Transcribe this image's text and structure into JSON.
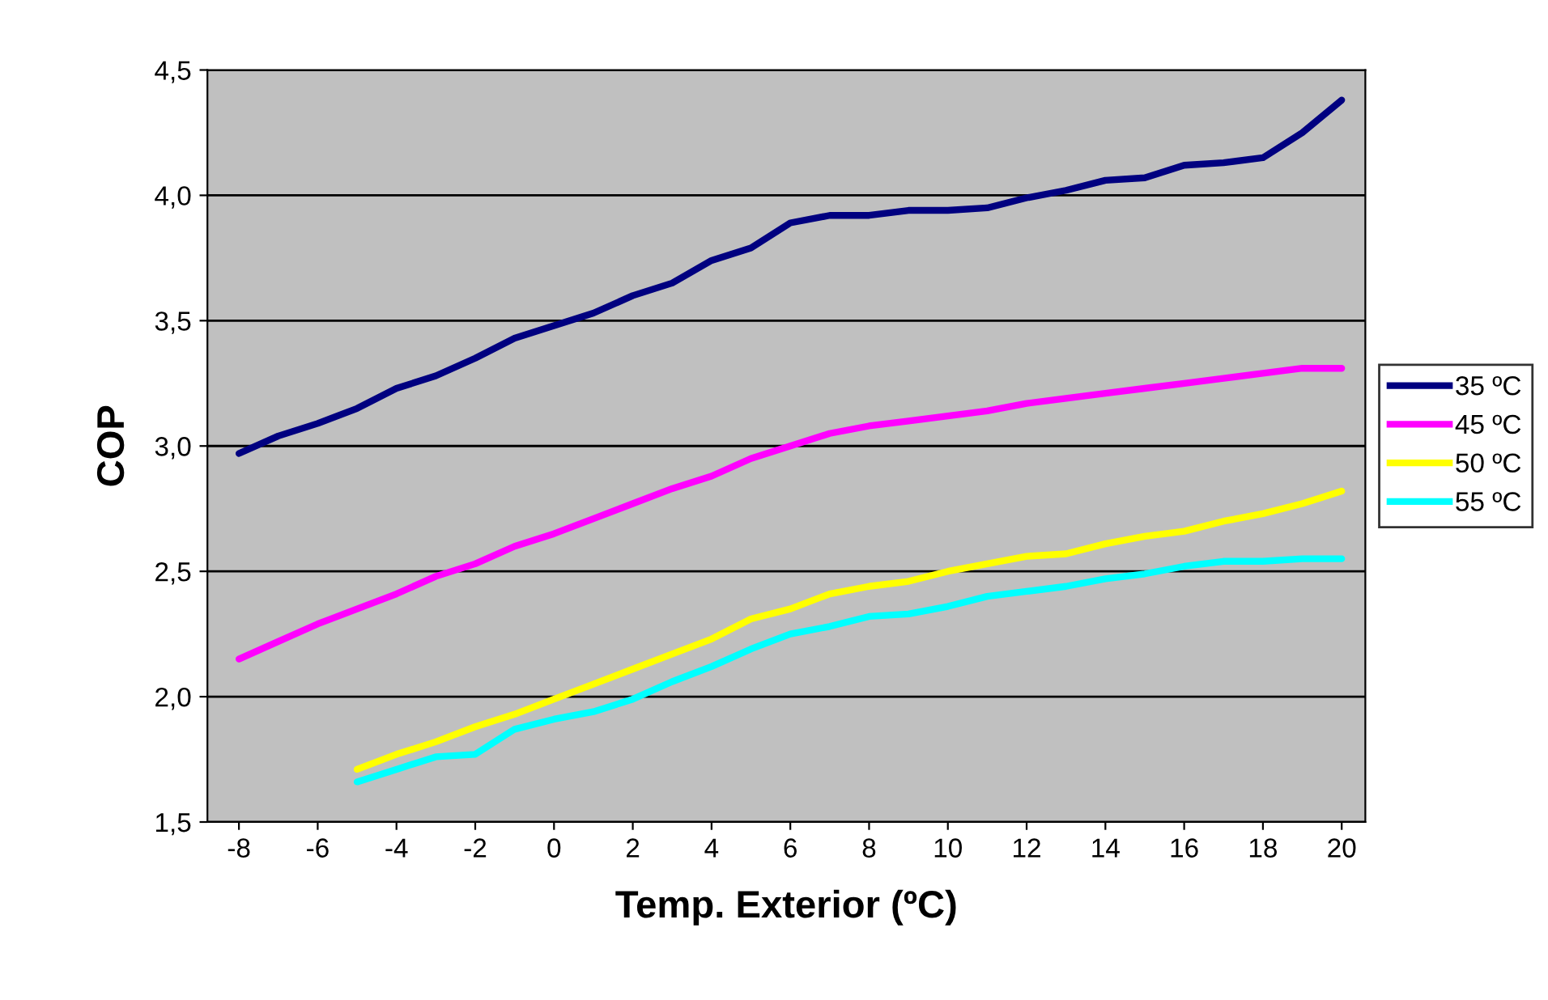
{
  "chart_data": {
    "type": "line",
    "xlabel": "Temp. Exterior (ºC)",
    "ylabel": "COP",
    "xlim": [
      -8.8,
      20.6
    ],
    "xticks": [
      -8,
      -6,
      -4,
      -2,
      0,
      2,
      4,
      6,
      8,
      10,
      12,
      14,
      16,
      18,
      20
    ],
    "ylim": [
      1.5,
      4.5
    ],
    "yticks": [
      {
        "value": 1.5,
        "label": "1,5"
      },
      {
        "value": 2.0,
        "label": "2,0"
      },
      {
        "value": 2.5,
        "label": "2,5"
      },
      {
        "value": 3.0,
        "label": "3,0"
      },
      {
        "value": 3.5,
        "label": "3,5"
      },
      {
        "value": 4.0,
        "label": "4,0"
      },
      {
        "value": 4.5,
        "label": "4,5"
      }
    ],
    "grid": "y",
    "legend": "right",
    "marker": "none",
    "line_style": "solid",
    "series": [
      {
        "name": "35 ºC",
        "color": "#000080",
        "x": [
          -8,
          -7,
          -6,
          -5,
          -4,
          -3,
          -2,
          -1,
          0,
          1,
          2,
          3,
          4,
          5,
          6,
          7,
          8,
          9,
          10,
          11,
          12,
          13,
          14,
          15,
          16,
          17,
          18,
          19,
          20
        ],
        "values": [
          2.97,
          3.04,
          3.09,
          3.15,
          3.23,
          3.28,
          3.35,
          3.43,
          3.48,
          3.53,
          3.6,
          3.65,
          3.74,
          3.79,
          3.89,
          3.92,
          3.92,
          3.94,
          3.94,
          3.95,
          3.99,
          4.02,
          4.06,
          4.07,
          4.12,
          4.13,
          4.15,
          4.25,
          4.38
        ]
      },
      {
        "name": "45 ºC",
        "color": "#ff00ff",
        "x": [
          -8,
          -7,
          -6,
          -5,
          -4,
          -3,
          -2,
          -1,
          0,
          1,
          2,
          3,
          4,
          5,
          6,
          7,
          8,
          9,
          10,
          11,
          12,
          13,
          14,
          15,
          16,
          17,
          18,
          19,
          20
        ],
        "values": [
          2.15,
          2.22,
          2.29,
          2.35,
          2.41,
          2.48,
          2.53,
          2.6,
          2.65,
          2.71,
          2.77,
          2.83,
          2.88,
          2.95,
          3.0,
          3.05,
          3.08,
          3.1,
          3.12,
          3.14,
          3.17,
          3.19,
          3.21,
          3.23,
          3.25,
          3.27,
          3.29,
          3.31,
          3.31
        ]
      },
      {
        "name": "50 ºC",
        "color": "#ffff00",
        "x": [
          -5,
          -4,
          -3,
          -2,
          -1,
          0,
          1,
          2,
          3,
          4,
          5,
          6,
          7,
          8,
          9,
          10,
          11,
          12,
          13,
          14,
          15,
          16,
          17,
          18,
          19,
          20
        ],
        "values": [
          1.71,
          1.77,
          1.82,
          1.88,
          1.93,
          1.99,
          2.05,
          2.11,
          2.17,
          2.23,
          2.31,
          2.35,
          2.41,
          2.44,
          2.46,
          2.5,
          2.53,
          2.56,
          2.57,
          2.61,
          2.64,
          2.66,
          2.7,
          2.73,
          2.77,
          2.82
        ]
      },
      {
        "name": "55 ºC",
        "color": "#00ffff",
        "x": [
          -5,
          -4,
          -3,
          -2,
          -1,
          0,
          1,
          2,
          3,
          4,
          5,
          6,
          7,
          8,
          9,
          10,
          11,
          12,
          13,
          14,
          15,
          16,
          17,
          18,
          19,
          20
        ],
        "values": [
          1.66,
          1.71,
          1.76,
          1.77,
          1.87,
          1.91,
          1.94,
          1.99,
          2.06,
          2.12,
          2.19,
          2.25,
          2.28,
          2.32,
          2.33,
          2.36,
          2.4,
          2.42,
          2.44,
          2.47,
          2.49,
          2.52,
          2.54,
          2.54,
          2.55,
          2.55
        ]
      }
    ]
  }
}
